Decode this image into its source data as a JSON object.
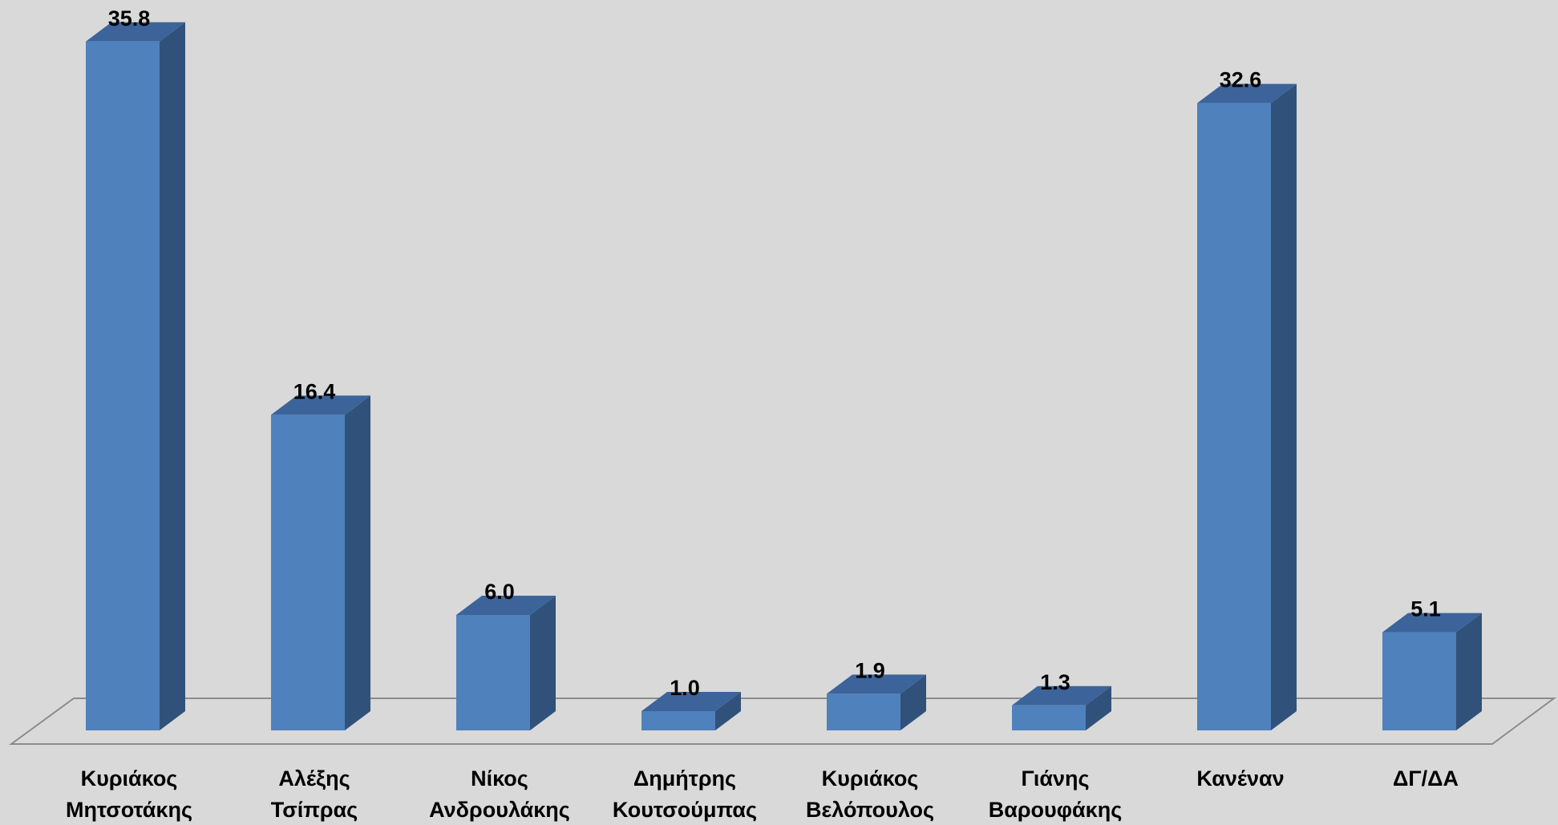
{
  "chart_data": {
    "type": "bar",
    "title": "",
    "xlabel": "",
    "ylabel": "",
    "three_d": true,
    "grid": false,
    "legend": "none",
    "ylim": [
      0,
      36
    ],
    "categories": [
      [
        "Κυριάκος",
        "Μητσοτάκης"
      ],
      [
        "Αλέξης",
        "Τσίπρας"
      ],
      [
        "Νίκος",
        "Ανδρουλάκης"
      ],
      [
        "Δημήτρης",
        "Κουτσούμπας"
      ],
      [
        "Κυριάκος",
        "Βελόπουλος"
      ],
      [
        "Γιάνης",
        "Βαρουφάκης"
      ],
      [
        "Κανέναν"
      ],
      [
        "ΔΓ/ΔΑ"
      ]
    ],
    "values": [
      35.8,
      16.4,
      6.0,
      1.0,
      1.9,
      1.3,
      32.6,
      5.1
    ],
    "value_labels": [
      "35.8",
      "16.4",
      "6.0",
      "1.0",
      "1.9",
      "1.3",
      "32.6",
      "5.1"
    ],
    "colors": {
      "background": "#d9d9d9",
      "bar_front": "#4f81bd",
      "bar_side": "#30527a",
      "bar_top": "#3c649a",
      "floor_line": "#8c8c8c",
      "text": "#000000"
    }
  }
}
